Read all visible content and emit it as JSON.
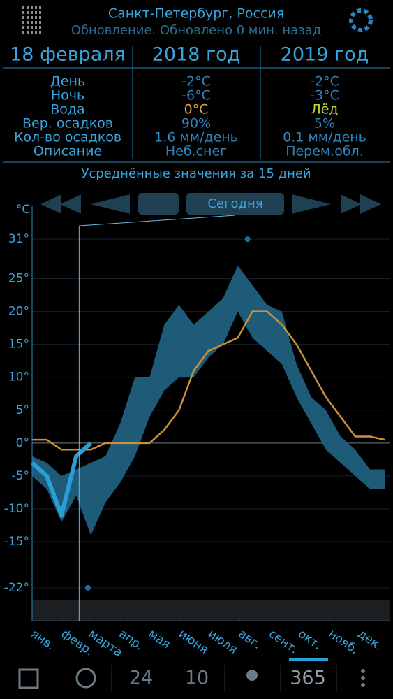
{
  "header": {
    "city": "Санкт-Петербург, Россия",
    "status": "Обновление. Обновлено 0 мин. назад"
  },
  "table": {
    "columns": [
      "18 февраля",
      "2018 год",
      "2019 год"
    ],
    "rows": [
      [
        "День",
        "-2°C",
        "-2°C"
      ],
      [
        "Ночь",
        "-6°C",
        "-3°C"
      ],
      [
        "Вода",
        "0°C",
        "Лёд"
      ],
      [
        "Вер. осадков",
        "90%",
        "5%"
      ],
      [
        "Кол-во осадков",
        "1.6 мм/день",
        "0.1 мм/день"
      ],
      [
        "Описание",
        "Неб.снег",
        "Перем.обл."
      ]
    ]
  },
  "subtitle": "Усреднённые значения за 15 дней",
  "today_button": "Сегодня",
  "chart_data": {
    "type": "range-line",
    "y_label": "°C",
    "x": [
      0,
      15,
      30,
      45,
      60,
      75,
      90,
      105,
      120,
      135,
      150,
      165,
      180,
      195,
      210,
      225,
      240,
      255,
      270,
      285,
      300,
      315,
      330,
      345,
      360
    ],
    "xlim": [
      0,
      365
    ],
    "xticks": [
      {
        "value": 0,
        "label": "янв."
      },
      {
        "value": 31,
        "label": "февр."
      },
      {
        "value": 59,
        "label": "марта"
      },
      {
        "value": 90,
        "label": "апр."
      },
      {
        "value": 120,
        "label": "мая"
      },
      {
        "value": 151,
        "label": "июня"
      },
      {
        "value": 181,
        "label": "июля"
      },
      {
        "value": 212,
        "label": "авг."
      },
      {
        "value": 243,
        "label": "сент."
      },
      {
        "value": 273,
        "label": "окт."
      },
      {
        "value": 304,
        "label": "нояб."
      },
      {
        "value": 334,
        "label": "дек."
      }
    ],
    "ylim": [
      -27,
      36
    ],
    "yticks": [
      {
        "value": 31,
        "label": "31°"
      },
      {
        "value": 25,
        "label": "25°"
      },
      {
        "value": 20,
        "label": "20°"
      },
      {
        "value": 15,
        "label": "15°"
      },
      {
        "value": 10,
        "label": "10°"
      },
      {
        "value": 5,
        "label": "5°"
      },
      {
        "value": 0,
        "label": "0°"
      },
      {
        "value": -5,
        "label": "-5°"
      },
      {
        "value": -10,
        "label": "-10°"
      },
      {
        "value": -15,
        "label": "-15°"
      },
      {
        "value": -22,
        "label": "-22°"
      }
    ],
    "series": [
      {
        "kind": "range",
        "color": "#1d5b78",
        "high": [
          -2,
          -3,
          -5,
          -4,
          -3,
          -2,
          3,
          10,
          10,
          18,
          21,
          18,
          20,
          22,
          27,
          24,
          21,
          20,
          12,
          7,
          5,
          1,
          -1,
          -4,
          -4
        ],
        "low": [
          -5,
          -7,
          -12,
          -8,
          -14,
          -9,
          -6,
          -2,
          4,
          8,
          10,
          10,
          13,
          15,
          20,
          16,
          14,
          12,
          7,
          3,
          -1,
          -3,
          -5,
          -7,
          -7
        ]
      },
      {
        "kind": "line",
        "color": "#c8913a",
        "values": [
          0.5,
          0.5,
          -1,
          -1,
          -1,
          0,
          0,
          0,
          0,
          2,
          5,
          11,
          14,
          15,
          16,
          20,
          20,
          18,
          15,
          11,
          7,
          4,
          1,
          1,
          0.5
        ]
      },
      {
        "kind": "line",
        "color": "#2a9fd6",
        "values": [
          -3,
          -5,
          -11,
          -2,
          0,
          null,
          null,
          null,
          null,
          null,
          null,
          null,
          null,
          null,
          null,
          null,
          null,
          null,
          null,
          null,
          null,
          null,
          null,
          null,
          null
        ]
      }
    ],
    "record_high": {
      "x": 220,
      "y": 31
    },
    "record_low": {
      "x": 57,
      "y": -22
    },
    "today_x": 48
  },
  "toolbar": {
    "hours": "24",
    "days": "10",
    "year": "365"
  }
}
